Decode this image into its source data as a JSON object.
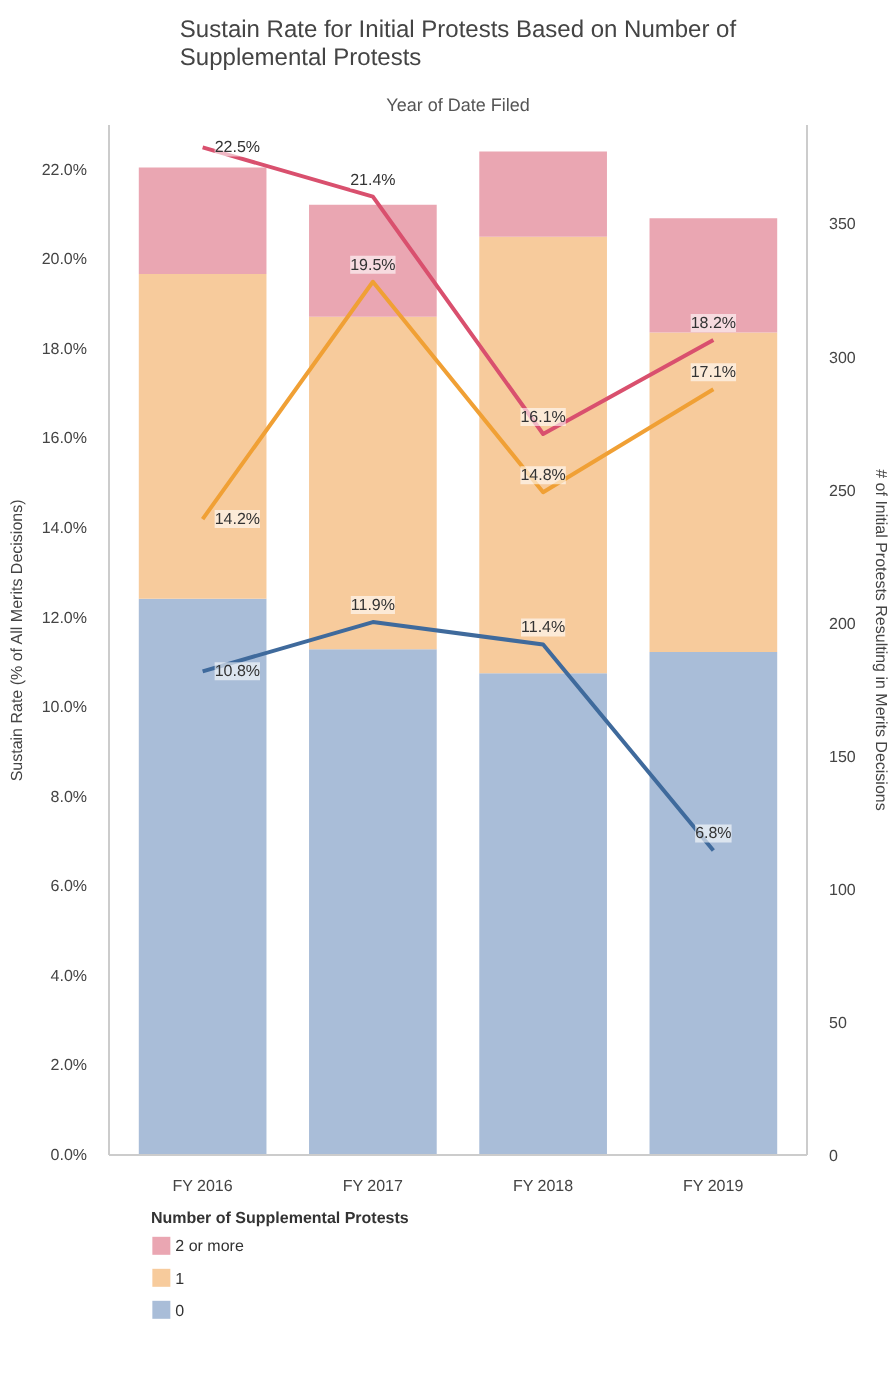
{
  "chart_data": {
    "type": "bar",
    "stacked": true,
    "title": "Sustain Rate for Initial Protests Based on Number of Supplemental Protests",
    "subtitle": "Year of Date Filed",
    "ylabel": "Sustain Rate (% of All Merits Decisions)",
    "y2label": "# of Initial Protests Resulting in Merits Decisions",
    "legend_title": "Number of Supplemental Protests",
    "legend": "bottom",
    "categories": [
      "FY 2016",
      "FY 2017",
      "FY 2018",
      "FY 2019"
    ],
    "ylim": [
      0,
      23
    ],
    "yticks": [
      {
        "value": 0,
        "label": "0.0%"
      },
      {
        "value": 2,
        "label": "2.0%"
      },
      {
        "value": 4,
        "label": "4.0%"
      },
      {
        "value": 6,
        "label": "6.0%"
      },
      {
        "value": 8,
        "label": "8.0%"
      },
      {
        "value": 10,
        "label": "10.0%"
      },
      {
        "value": 12,
        "label": "12.0%"
      },
      {
        "value": 14,
        "label": "14.0%"
      },
      {
        "value": 16,
        "label": "16.0%"
      },
      {
        "value": 18,
        "label": "18.0%"
      },
      {
        "value": 20,
        "label": "20.0%"
      },
      {
        "value": 22,
        "label": "22.0%"
      }
    ],
    "y2lim": [
      0,
      387
    ],
    "y2ticks": [
      0,
      50,
      100,
      150,
      200,
      250,
      300,
      350
    ],
    "series": [
      {
        "name": "0",
        "axis": "y2",
        "color": "#a9bdd8",
        "values": [
          209,
          190,
          181,
          189
        ]
      },
      {
        "name": "1",
        "axis": "y2",
        "color": "#f7cb9c",
        "values": [
          122,
          125,
          164,
          120
        ]
      },
      {
        "name": "2 or more",
        "axis": "y2",
        "color": "#eaa6b2",
        "values": [
          40,
          42,
          32,
          43
        ]
      },
      {
        "type": "line",
        "axis": "y",
        "color": "#3f6a9c",
        "values": [
          10.8,
          11.9,
          11.4,
          6.8
        ],
        "value_labels": [
          "10.8%",
          "11.9%",
          "11.4%",
          "6.8%"
        ]
      },
      {
        "type": "line",
        "axis": "y",
        "color": "#f0a035",
        "values": [
          14.2,
          19.5,
          14.8,
          17.1
        ],
        "value_labels": [
          "14.2%",
          "19.5%",
          "14.8%",
          "17.1%"
        ]
      },
      {
        "type": "line",
        "axis": "y",
        "color": "#d9506e",
        "values": [
          22.5,
          21.4,
          16.1,
          18.2
        ],
        "value_labels": [
          "22.5%",
          "21.4%",
          "16.1%",
          "18.2%"
        ]
      }
    ]
  }
}
